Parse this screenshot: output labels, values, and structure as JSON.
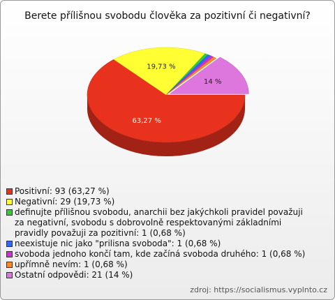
{
  "chart_data": {
    "type": "pie3d",
    "title": "Berete přílišnou svobodu člověka za pozitivní či negativní?",
    "categories": [
      "Positivní: 93 (63,27 %)",
      "Negativní: 29 (19,73 %)",
      "definujte přílišnou svobodu, anarchii bez jakýchkoli pravidel považuji za negativní, svobodu s dobrovolně respektovanými základními pravidly považuji za pozitivní: 1 (0,68 %)",
      "neexistuje nic jako \"prilisna svoboda\": 1 (0,68 %)",
      "svoboda jednoho končí tam, kde začíná svoboda druhého: 1 (0,68 %)",
      "upřímně nevím: 1 (0,68 %)",
      "Ostatní odpovědi: 21 (14 %)"
    ],
    "values": [
      63.27,
      19.73,
      0.68,
      0.68,
      0.68,
      0.68,
      14
    ],
    "value_labels": [
      "63,27 %",
      "19,73 %",
      null,
      null,
      null,
      null,
      "14 %"
    ],
    "colors": [
      "#e8321e",
      "#ffff33",
      "#33cc33",
      "#3366ff",
      "#cc33cc",
      "#ff8822",
      "#dd77dd"
    ],
    "source": "zdroj: https://socialismus.vyplnto.cz"
  }
}
